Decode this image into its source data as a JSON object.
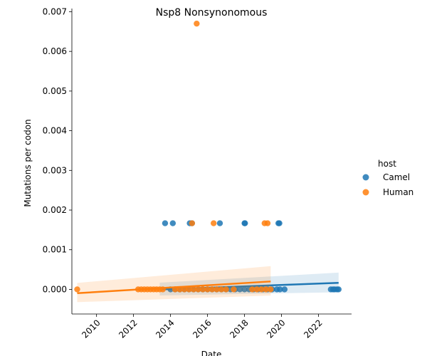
{
  "chart_data": {
    "type": "scatter",
    "title": "Nsp8 Nonsynonomous",
    "xlabel": "Date",
    "ylabel": "Mutations per codon",
    "xlim": [
      "2008-09-01",
      "2023-10-15"
    ],
    "ylim": [
      -0.00062,
      0.00708
    ],
    "x_ticks": [
      "2010-01-01",
      "2012-01-01",
      "2014-01-01",
      "2016-01-01",
      "2018-01-01",
      "2020-01-01",
      "2022-01-01"
    ],
    "x_tick_labels": [
      "2010",
      "2012",
      "2014",
      "2016",
      "2018",
      "2020",
      "2022"
    ],
    "y_ticks": [
      0,
      0.001,
      0.002,
      0.003,
      0.004,
      0.005,
      0.006,
      0.007
    ],
    "y_tick_labels": [
      "0.000",
      "0.001",
      "0.002",
      "0.003",
      "0.004",
      "0.005",
      "0.006",
      "0.007"
    ],
    "legend": {
      "title": "host",
      "placement": "right"
    },
    "series": [
      {
        "name": "Camel",
        "color": "#1f77b4",
        "points": [
          [
            "2013-09-15",
            0.001667
          ],
          [
            "2014-02-15",
            0.001667
          ],
          [
            "2015-01-15",
            0.001667
          ],
          [
            "2015-03-01",
            0.001667
          ],
          [
            "2016-09-01",
            0.001667
          ],
          [
            "2018-01-01",
            0.001667
          ],
          [
            "2018-01-10",
            0.001667
          ],
          [
            "2019-11-01",
            0.001667
          ],
          [
            "2019-11-20",
            0.001667
          ],
          [
            "2014-01-01",
            0
          ],
          [
            "2014-04-01",
            0
          ],
          [
            "2014-07-01",
            0
          ],
          [
            "2014-10-01",
            0
          ],
          [
            "2015-01-01",
            0
          ],
          [
            "2015-04-01",
            0
          ],
          [
            "2015-07-01",
            0
          ],
          [
            "2015-10-01",
            0
          ],
          [
            "2016-01-01",
            0
          ],
          [
            "2016-04-01",
            0
          ],
          [
            "2016-07-01",
            0
          ],
          [
            "2016-10-01",
            0
          ],
          [
            "2017-01-01",
            0
          ],
          [
            "2017-04-01",
            0
          ],
          [
            "2017-07-01",
            0
          ],
          [
            "2017-10-01",
            0
          ],
          [
            "2018-01-01",
            0
          ],
          [
            "2018-04-01",
            0
          ],
          [
            "2018-07-01",
            0
          ],
          [
            "2018-10-01",
            0
          ],
          [
            "2019-01-01",
            0
          ],
          [
            "2019-04-01",
            0
          ],
          [
            "2019-07-01",
            0
          ],
          [
            "2019-10-01",
            0
          ],
          [
            "2019-12-01",
            0
          ],
          [
            "2020-03-01",
            0
          ],
          [
            "2022-09-01",
            0
          ],
          [
            "2022-10-15",
            0
          ],
          [
            "2022-11-15",
            0
          ],
          [
            "2023-01-01",
            0
          ],
          [
            "2023-02-01",
            0
          ]
        ],
        "regression": [
          [
            "2013-06-01",
            -3e-06
          ],
          [
            "2023-02-01",
            0.000165
          ]
        ]
      },
      {
        "name": "Human",
        "color": "#ff7f0e",
        "points": [
          [
            "2015-06-01",
            0.0067
          ],
          [
            "2015-03-01",
            0.001667
          ],
          [
            "2016-05-01",
            0.001667
          ],
          [
            "2019-02-01",
            0.001667
          ],
          [
            "2019-04-01",
            0.001667
          ],
          [
            "2008-12-15",
            0
          ],
          [
            "2012-04-01",
            0
          ],
          [
            "2012-06-01",
            0
          ],
          [
            "2012-08-01",
            0
          ],
          [
            "2012-10-01",
            0
          ],
          [
            "2012-12-01",
            0
          ],
          [
            "2013-02-01",
            0
          ],
          [
            "2013-04-01",
            0
          ],
          [
            "2013-06-01",
            0
          ],
          [
            "2013-08-01",
            0
          ],
          [
            "2014-04-01",
            0
          ],
          [
            "2014-07-01",
            0
          ],
          [
            "2014-10-01",
            0
          ],
          [
            "2015-01-01",
            0
          ],
          [
            "2015-04-01",
            0
          ],
          [
            "2015-07-01",
            0
          ],
          [
            "2015-10-01",
            0
          ],
          [
            "2016-01-01",
            0
          ],
          [
            "2016-04-01",
            0
          ],
          [
            "2016-07-01",
            0
          ],
          [
            "2016-10-01",
            0
          ],
          [
            "2017-01-01",
            0
          ],
          [
            "2017-06-01",
            0
          ],
          [
            "2018-06-01",
            0
          ],
          [
            "2018-09-01",
            0
          ],
          [
            "2018-12-01",
            0
          ],
          [
            "2019-03-01",
            0
          ],
          [
            "2019-06-01",
            0
          ]
        ],
        "regression": [
          [
            "2008-12-15",
            -9.5e-05
          ],
          [
            "2019-06-01",
            0.0002
          ]
        ]
      }
    ]
  }
}
